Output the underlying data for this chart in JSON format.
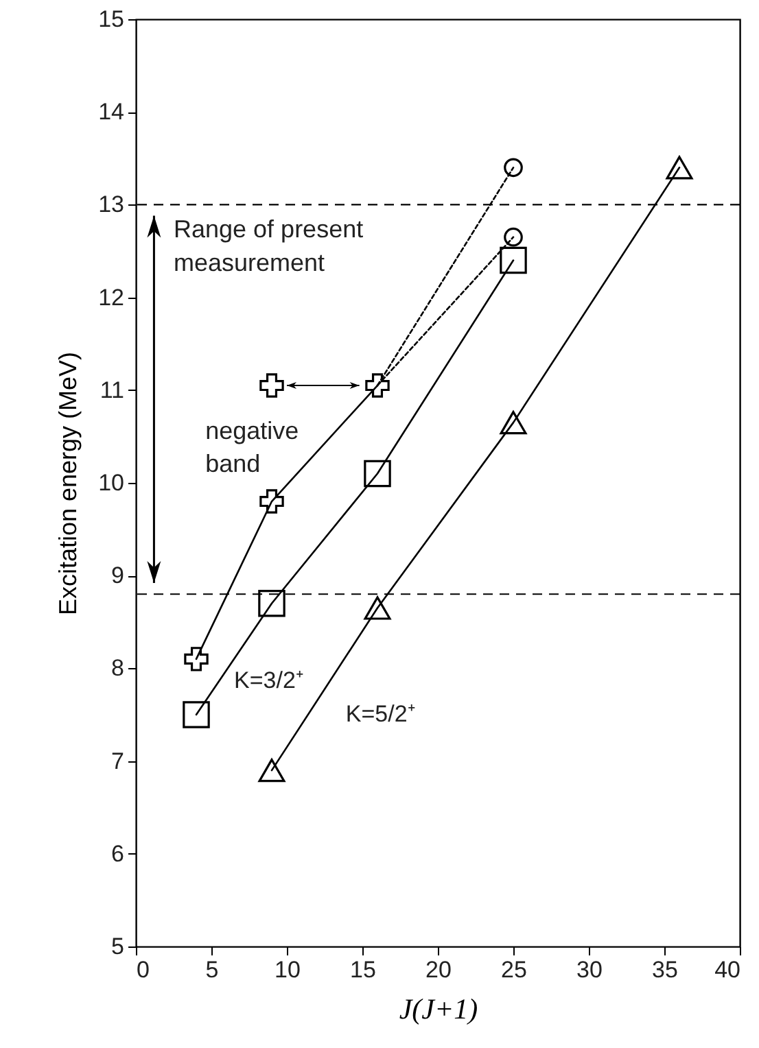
{
  "chart_data": {
    "type": "line",
    "xlabel": "J(J+1)",
    "ylabel": "Excitation energy (MeV)",
    "xlim": [
      0,
      40
    ],
    "xticks": [
      0,
      5,
      10,
      15,
      20,
      25,
      30,
      35,
      40
    ],
    "ylim": [
      5,
      15
    ],
    "yticks": [
      5,
      6,
      7,
      8,
      9,
      10,
      11,
      12,
      13,
      14,
      15
    ],
    "ref_lines": [
      {
        "axis": "y",
        "value": 13,
        "line_style": "dashed",
        "color": "#000000"
      },
      {
        "axis": "y",
        "value": 8.8,
        "line_style": "dashed",
        "color": "#000000"
      }
    ],
    "annotations": [
      "Range of present measurement",
      "negative band",
      "K=3/2⁺",
      "K=5/2⁺"
    ],
    "series": [
      {
        "type": "line",
        "marker": "cross",
        "line_style": "solid",
        "color": "#000000",
        "x": [
          4,
          9,
          16
        ],
        "values": [
          8.1,
          9.8,
          11.05
        ]
      },
      {
        "type": "scatter",
        "marker": "cross",
        "color": "#000000",
        "x": [
          9
        ],
        "values": [
          11.05
        ]
      },
      {
        "type": "line",
        "marker": "none",
        "line_style": "dotted",
        "color": "#000000",
        "x": [
          16,
          25
        ],
        "values": [
          11.05,
          13.4
        ]
      },
      {
        "type": "line",
        "marker": "none",
        "line_style": "dotted",
        "color": "#000000",
        "x": [
          16,
          25
        ],
        "values": [
          11.05,
          12.65
        ]
      },
      {
        "type": "scatter",
        "marker": "circle",
        "color": "#000000",
        "x": [
          25,
          25
        ],
        "values": [
          13.4,
          12.65
        ]
      },
      {
        "type": "line",
        "marker": "square",
        "line_style": "solid",
        "color": "#000000",
        "x": [
          4,
          9,
          16,
          25
        ],
        "values": [
          7.5,
          8.7,
          10.1,
          12.4
        ]
      },
      {
        "type": "line",
        "marker": "triangle",
        "line_style": "solid",
        "color": "#000000",
        "x": [
          9,
          16,
          25,
          36
        ],
        "values": [
          6.9,
          8.65,
          10.65,
          13.4
        ]
      }
    ]
  }
}
